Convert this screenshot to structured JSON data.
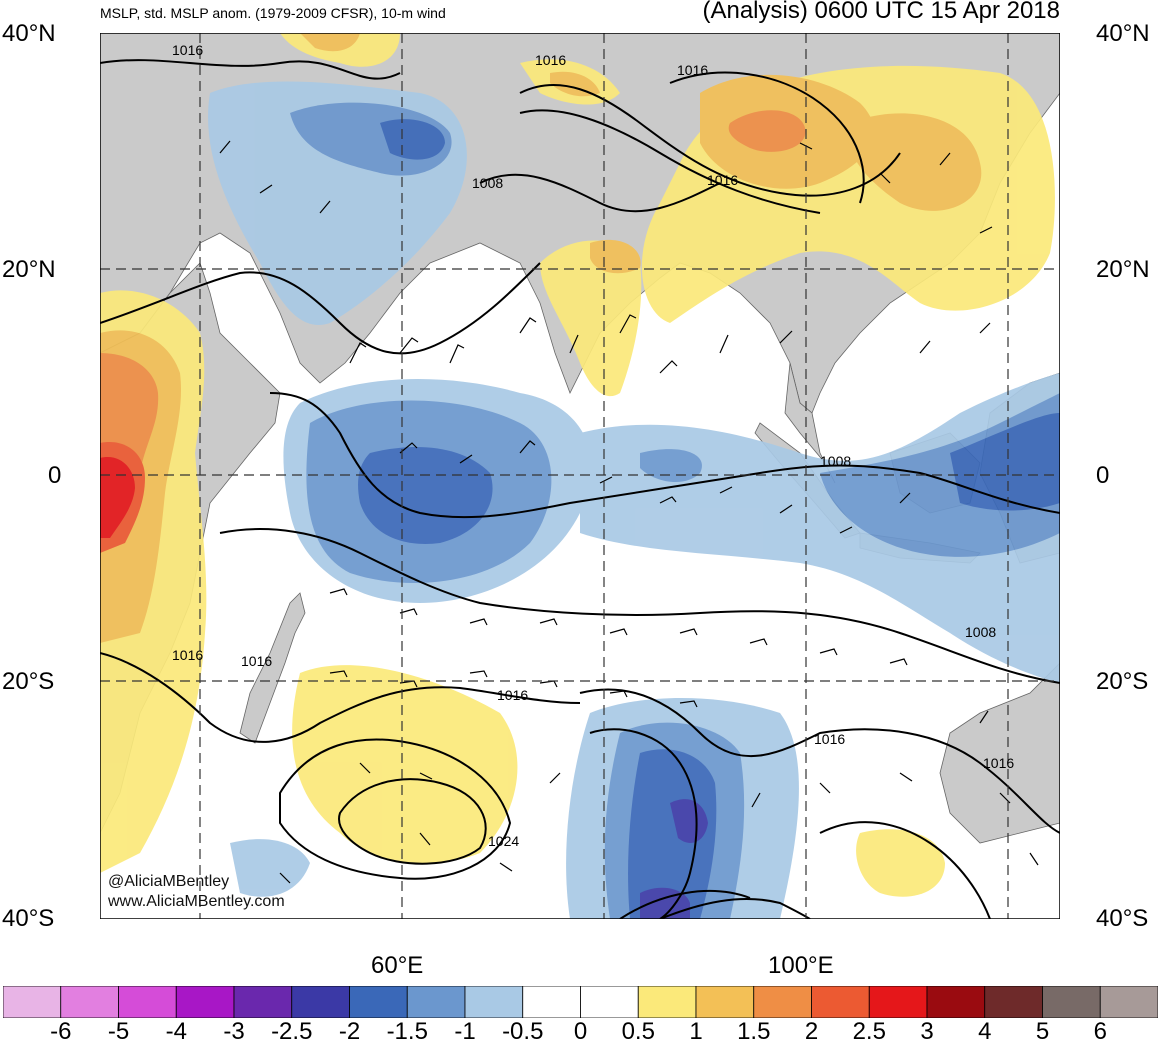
{
  "header": {
    "product_title": "MSLP, std. MSLP anom. (1979-2009 CFSR), 10-m wind",
    "valid_time": "(Analysis) 0600 UTC 15 Apr 2018"
  },
  "axes": {
    "lat_labels_left": [
      "40°N",
      "20°N",
      "0",
      "20°S",
      "40°S"
    ],
    "lat_labels_right": [
      "40°N",
      "20°N",
      "0",
      "20°S",
      "40°S"
    ],
    "lon_labels": [
      "60°E",
      "100°E"
    ]
  },
  "isobar_labels": [
    "1016",
    "1016",
    "1016",
    "1008",
    "1016",
    "1008",
    "1016",
    "1016",
    "1016",
    "1016",
    "1024",
    "1008",
    "1016"
  ],
  "credits": {
    "handle": "@AliciaMBentley",
    "website": "www.AliciaMBentley.com"
  },
  "colorbar": {
    "tick_labels": [
      "-6",
      "-5",
      "-4",
      "-3",
      "-2.5",
      "-2",
      "-1.5",
      "-1",
      "-0.5",
      "0",
      "0.5",
      "1",
      "1.5",
      "2",
      "2.5",
      "3",
      "4",
      "5",
      "6"
    ],
    "colors": [
      "#e8b4e6",
      "#e27fe0",
      "#d54cd8",
      "#a817c6",
      "#6a28ad",
      "#3b39a6",
      "#3a68b8",
      "#6b97ce",
      "#a9c9e5",
      "#ffffff",
      "#ffffff",
      "#fbe97a",
      "#f3c056",
      "#ef8e45",
      "#ec5a32",
      "#e5171a",
      "#9a0b10",
      "#6e2a2a",
      "#786a67",
      "#a79a98"
    ]
  },
  "map_colors": {
    "land": "#cacaca",
    "ocean": "#ffffff",
    "grid": "#555555",
    "isobar": "#000000"
  }
}
